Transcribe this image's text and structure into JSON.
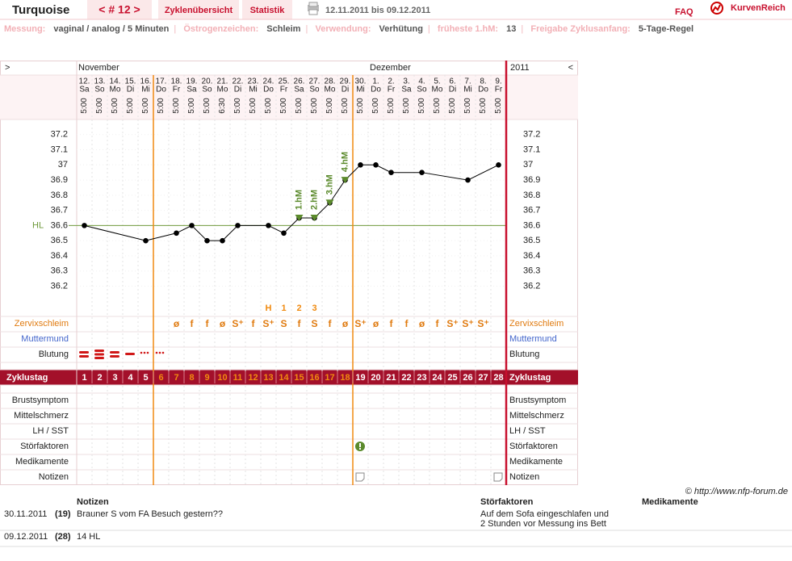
{
  "header": {
    "title": "Turquoise",
    "cycle": "< # 12 >",
    "tabs": [
      "Zyklenübersicht",
      "Statistik"
    ],
    "date_range": "12.11.2011 bis 09.12.2011",
    "faq": "FAQ",
    "logo": "KurvenReich"
  },
  "settings": [
    {
      "label": "Messung:",
      "value": "vaginal / analog / 5 Minuten"
    },
    {
      "label": "Östrogenzeichen:",
      "value": "Schleim"
    },
    {
      "label": "Verwendung:",
      "value": "Verhütung"
    },
    {
      "label": "früheste 1.hM:",
      "value": "13"
    },
    {
      "label": "Freigabe Zyklusanfang:",
      "value": "5-Tage-Regel"
    }
  ],
  "chart_data": {
    "type": "line",
    "nav_left": ">",
    "nav_right": "<",
    "months": [
      "November",
      "Dezember"
    ],
    "year": "2011",
    "dates": [
      "12.",
      "13.",
      "14.",
      "15.",
      "16.",
      "17.",
      "18.",
      "19.",
      "20.",
      "21.",
      "22.",
      "23.",
      "24.",
      "25.",
      "26.",
      "27.",
      "28.",
      "29.",
      "30.",
      "1.",
      "2.",
      "3.",
      "4.",
      "5.",
      "6.",
      "7.",
      "8.",
      "9."
    ],
    "weekdays": [
      "Sa",
      "So",
      "Mo",
      "Di",
      "Mi",
      "Do",
      "Fr",
      "Sa",
      "So",
      "Mo",
      "Di",
      "Mi",
      "Do",
      "Fr",
      "Sa",
      "So",
      "Mo",
      "Di",
      "Mi",
      "Do",
      "Fr",
      "Sa",
      "So",
      "Mo",
      "Di",
      "Mi",
      "Do",
      "Fr"
    ],
    "times": [
      "5:00",
      "5:00",
      "5:00",
      "5:00",
      "5:00",
      "5:00",
      "5:00",
      "5:00",
      "5:00",
      "6:30",
      "5:00",
      "5:00",
      "5:00",
      "5:00",
      "5:00",
      "5:00",
      "5:00",
      "5:00",
      "5:00",
      "5:00",
      "5:00",
      "5:00",
      "5:00",
      "5:00",
      "5:00",
      "5:00",
      "5:00",
      "5:00"
    ],
    "cycle_days": [
      1,
      2,
      3,
      4,
      5,
      6,
      7,
      8,
      9,
      10,
      11,
      12,
      13,
      14,
      15,
      16,
      17,
      18,
      19,
      20,
      21,
      22,
      23,
      24,
      25,
      26,
      27,
      28
    ],
    "fertile_window": [
      6,
      18
    ],
    "fertile_color": "#f08a10",
    "x": [
      1,
      5,
      7,
      8,
      9,
      10,
      11,
      13,
      14,
      15,
      16,
      17,
      18,
      19,
      20,
      21,
      23,
      26,
      28
    ],
    "values": [
      36.6,
      36.5,
      36.55,
      36.6,
      36.5,
      36.5,
      36.6,
      36.6,
      36.55,
      36.65,
      36.65,
      36.75,
      36.9,
      37,
      37,
      36.95,
      36.95,
      36.9,
      37
    ],
    "color": "#000000",
    "higher_measurements": {
      "x": [
        15,
        16,
        17,
        18
      ],
      "labels": [
        "1.hM",
        "2.hM",
        "3.hM",
        "4.hM"
      ],
      "color": "#5b8a2c"
    },
    "hl": {
      "label": "HL",
      "value": 36.6,
      "color": "#6f9a3c"
    },
    "ylim": [
      36.0,
      37.3
    ],
    "yticks": [
      36.2,
      36.3,
      36.4,
      36.5,
      36.6,
      36.7,
      36.8,
      36.9,
      37,
      37.1,
      37.2
    ],
    "grid": true,
    "peak": {
      "x": [
        13,
        14,
        15,
        16
      ],
      "labels": [
        "H",
        "1",
        "2",
        "3"
      ]
    },
    "mucus": [
      null,
      null,
      null,
      null,
      null,
      null,
      "ø",
      "f",
      "f",
      "ø",
      "S⁺",
      "f",
      "S⁺",
      "S",
      "f",
      "S",
      "f",
      "ø",
      "S⁺",
      "ø",
      "f",
      "f",
      "ø",
      "f",
      "S⁺",
      "S⁺",
      "S⁺",
      null
    ],
    "mucus_color": "#e07b10",
    "rows": {
      "mucus": "Zervixschleim",
      "cervix": "Muttermund",
      "bleeding": "Blutung",
      "cycle_day": "Zyklustag",
      "breast": "Brustsymptom",
      "mittelschmerz": "Mittelschmerz",
      "lh": "LH / SST",
      "disturbance": "Störfaktoren",
      "medication": "Medikamente",
      "notes": "Notizen"
    }
  },
  "notes": {
    "copyright": "© http://www.nfp-forum.de",
    "headers": [
      "Notizen",
      "Störfaktoren",
      "Medikamente"
    ],
    "rows": [
      {
        "date": "30.11.2011",
        "day": "(19)",
        "note": "Brauner S vom FA Besuch gestern??",
        "disturbance": [
          "Auf dem Sofa eingeschlafen und",
          "2 Stunden vor Messung ins Bett"
        ]
      },
      {
        "date": "09.12.2011",
        "day": "(28)",
        "note": "14 HL"
      }
    ]
  }
}
